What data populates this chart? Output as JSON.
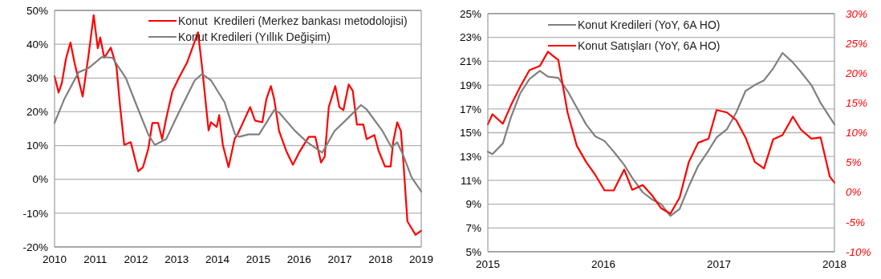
{
  "chart_data": [
    {
      "type": "line",
      "xlim": [
        2010,
        2019
      ],
      "xticks": [
        2010,
        2011,
        2012,
        2013,
        2014,
        2015,
        2016,
        2017,
        2018,
        2019
      ],
      "ylim": [
        -20,
        50
      ],
      "yticks": [
        {
          "value": -20,
          "label": "-20%"
        },
        {
          "value": -10,
          "label": "-10%"
        },
        {
          "value": 0,
          "label": "0%"
        },
        {
          "value": 10,
          "label": "10%"
        },
        {
          "value": 20,
          "label": "20%"
        },
        {
          "value": 30,
          "label": "30%"
        },
        {
          "value": 40,
          "label": "40%"
        },
        {
          "value": 50,
          "label": "50%"
        }
      ],
      "grid": "y",
      "legend": "top right",
      "series": [
        {
          "name": "Konut  Kredileri (Merkez bankası metodolojisi)",
          "color": "#ff0000",
          "x": [
            2010,
            2010.1,
            2010.18,
            2010.28,
            2010.39,
            2010.49,
            2010.57,
            2010.69,
            2010.83,
            2010.96,
            2011.06,
            2011.12,
            2011.22,
            2011.38,
            2011.52,
            2011.61,
            2011.71,
            2011.87,
            2012.05,
            2012.17,
            2012.3,
            2012.4,
            2012.54,
            2012.64,
            2012.74,
            2012.89,
            2013.05,
            2013.25,
            2013.52,
            2013.62,
            2013.78,
            2013.84,
            2013.98,
            2014.04,
            2014.13,
            2014.27,
            2014.42,
            2014.5,
            2014.67,
            2014.8,
            2014.92,
            2015.1,
            2015.2,
            2015.31,
            2015.39,
            2015.51,
            2015.69,
            2015.85,
            2016.0,
            2016.24,
            2016.4,
            2016.54,
            2016.63,
            2016.73,
            2016.89,
            2016.99,
            2017.09,
            2017.22,
            2017.32,
            2017.42,
            2017.58,
            2017.66,
            2017.85,
            2017.95,
            2018.11,
            2018.25,
            2018.31,
            2018.41,
            2018.5,
            2018.56,
            2018.66,
            2018.86,
            2019.0
          ],
          "values": [
            30.5,
            25.7,
            28.6,
            35.7,
            40.5,
            34.5,
            30.5,
            24.5,
            36.4,
            48.6,
            38.8,
            42,
            36,
            39,
            33.3,
            21.4,
            10.2,
            11,
            2.4,
            3.6,
            9,
            16.7,
            16.7,
            11.9,
            18,
            26,
            30,
            34.5,
            43.5,
            33.3,
            14.5,
            16.9,
            15.5,
            19,
            10.2,
            3.6,
            12,
            13.5,
            18,
            21.4,
            17.4,
            16.9,
            23.8,
            27.6,
            23.8,
            14.3,
            8.3,
            4.3,
            7.9,
            12.6,
            12.6,
            5,
            6.7,
            21.4,
            27.6,
            21.4,
            20.5,
            28.1,
            26.2,
            16.2,
            16.2,
            11.9,
            13.1,
            8.6,
            3.8,
            3.8,
            11,
            16.9,
            14.3,
            5.5,
            -12.4,
            -16.4,
            -15.2
          ]
        },
        {
          "name": "Konut Kredileri (Yıllık Değişim)",
          "color": "#808080",
          "x": [
            2010,
            2010.24,
            2010.59,
            2010.83,
            2011.16,
            2011.42,
            2011.75,
            2012.01,
            2012.3,
            2012.46,
            2012.74,
            2013.05,
            2013.44,
            2013.62,
            2013.84,
            2014.17,
            2014.43,
            2014.53,
            2014.76,
            2015.02,
            2015.39,
            2015.51,
            2015.89,
            2016.2,
            2016.57,
            2016.87,
            2017.19,
            2017.52,
            2017.66,
            2018.05,
            2018.27,
            2018.41,
            2018.56,
            2018.76,
            2019
          ],
          "values": [
            16.7,
            23.8,
            31.7,
            32.9,
            36.2,
            36,
            30,
            22,
            13.3,
            10.2,
            11.9,
            19.8,
            29.3,
            31.2,
            29.3,
            22.9,
            13.3,
            12.6,
            13.3,
            13.3,
            20.5,
            19.8,
            14.5,
            11,
            7.9,
            14.3,
            18,
            22,
            20.7,
            14.3,
            9.5,
            11,
            7.1,
            0.7,
            -3.6
          ]
        }
      ]
    },
    {
      "type": "line",
      "xlim": [
        2015,
        2018
      ],
      "xticks": [
        2015,
        2016,
        2017,
        2018
      ],
      "ylim": [
        5,
        25
      ],
      "yticks": [
        {
          "value": 5,
          "label": "5%"
        },
        {
          "value": 7,
          "label": "7%"
        },
        {
          "value": 9,
          "label": "9%"
        },
        {
          "value": 11,
          "label": "11%"
        },
        {
          "value": 13,
          "label": "13%"
        },
        {
          "value": 15,
          "label": "15%"
        },
        {
          "value": 17,
          "label": "17%"
        },
        {
          "value": 19,
          "label": "19%"
        },
        {
          "value": 21,
          "label": "21%"
        },
        {
          "value": 23,
          "label": "23%"
        },
        {
          "value": 25,
          "label": "25%"
        }
      ],
      "y2lim": [
        -10,
        30
      ],
      "y2ticks": [
        {
          "value": -10,
          "label": "-10%"
        },
        {
          "value": -5,
          "label": "-5%"
        },
        {
          "value": 0,
          "label": "0%"
        },
        {
          "value": 5,
          "label": "5%"
        },
        {
          "value": 10,
          "label": "10%"
        },
        {
          "value": 15,
          "label": "15%"
        },
        {
          "value": 20,
          "label": "20%"
        },
        {
          "value": 25,
          "label": "25%"
        },
        {
          "value": 30,
          "label": "30%"
        }
      ],
      "grid": "y",
      "legend": "top left",
      "series": [
        {
          "name": "Konut Kredileri (YoY, 6A HO)",
          "color": "#808080",
          "x": [
            2015,
            2015.04,
            2015.13,
            2015.2,
            2015.28,
            2015.36,
            2015.45,
            2015.52,
            2015.61,
            2015.69,
            2015.77,
            2015.85,
            2015.93,
            2016.01,
            2016.09,
            2016.18,
            2016.25,
            2016.34,
            2016.42,
            2016.5,
            2016.58,
            2016.66,
            2016.74,
            2016.82,
            2016.91,
            2016.98,
            2017.07,
            2017.15,
            2017.23,
            2017.31,
            2017.39,
            2017.47,
            2017.55,
            2017.64,
            2017.71,
            2017.8,
            2017.88,
            2018
          ],
          "values": [
            13.4,
            13.2,
            14.1,
            16.3,
            18.3,
            19.5,
            20.2,
            19.7,
            19.6,
            18.5,
            17.1,
            15.7,
            14.7,
            14.3,
            13.4,
            12.3,
            11.2,
            10,
            9.4,
            9,
            8,
            8.6,
            10.5,
            12.2,
            13.5,
            14.6,
            15.3,
            16.7,
            18.5,
            19,
            19.4,
            20.4,
            21.7,
            20.9,
            20.1,
            19,
            17.5,
            15.7
          ]
        },
        {
          "name": "Konut Satışları (YoY, 6A HO)",
          "color": "#ff0000",
          "axis": "y2",
          "x": [
            2015,
            2015.04,
            2015.13,
            2015.2,
            2015.28,
            2015.36,
            2015.45,
            2015.52,
            2015.61,
            2015.69,
            2015.77,
            2015.85,
            2015.93,
            2016.01,
            2016.09,
            2016.18,
            2016.25,
            2016.34,
            2016.42,
            2016.5,
            2016.58,
            2016.66,
            2016.74,
            2016.82,
            2016.91,
            2016.98,
            2017.07,
            2017.15,
            2017.23,
            2017.31,
            2017.39,
            2017.47,
            2017.55,
            2017.64,
            2017.71,
            2017.8,
            2017.88,
            2017.96,
            2018
          ],
          "values": [
            11.4,
            13.1,
            11.5,
            14.6,
            17.7,
            20.5,
            21.2,
            23.6,
            22.2,
            13.4,
            7.8,
            5.1,
            2.9,
            0.3,
            0.3,
            3.8,
            0.4,
            1.2,
            -0.5,
            -2.7,
            -3.6,
            -0.9,
            5.1,
            8.3,
            9,
            13.8,
            13.4,
            12.1,
            9.2,
            5.1,
            4,
            8.9,
            9.6,
            12.7,
            10.5,
            9,
            9.2,
            2.6,
            1.6
          ]
        }
      ]
    }
  ]
}
